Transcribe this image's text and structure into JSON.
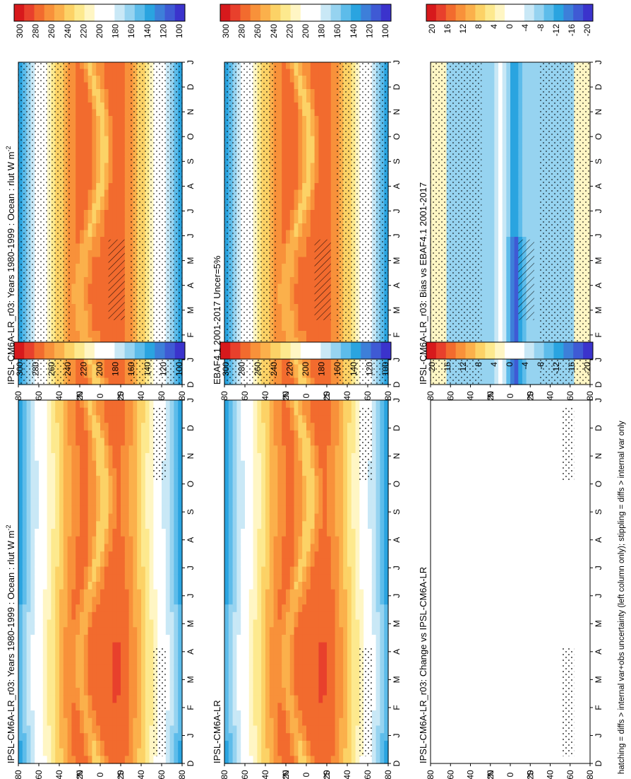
{
  "figure": {
    "footnote": "hatching = diffs > internal var+obs uncertainty (left column only); stippling = diffs > internal var only"
  },
  "scales": {
    "absolute": {
      "labels": [
        "300",
        "280",
        "260",
        "240",
        "220",
        "200",
        "180",
        "160",
        "140",
        "120",
        "100"
      ],
      "colors": [
        "#d7191c",
        "#e8402c",
        "#f26b2e",
        "#f8913a",
        "#fbb04b",
        "#fcd266",
        "#fde98e",
        "#fff6c4",
        "#ffffff",
        "#ffffff",
        "#c9e8f6",
        "#96d3f0",
        "#5dbcea",
        "#2aa4e0",
        "#3d7fd9",
        "#3f5ad4",
        "#3b33cc"
      ]
    },
    "difference": {
      "labels": [
        "20",
        "16",
        "12",
        "8",
        "4",
        "0",
        "-4",
        "-8",
        "-12",
        "-16",
        "-20"
      ],
      "colors": [
        "#d7191c",
        "#e8402c",
        "#f26b2e",
        "#f8913a",
        "#fbb04b",
        "#fcd266",
        "#fde98e",
        "#fff6c4",
        "#ffffff",
        "#ffffff",
        "#c9e8f6",
        "#96d3f0",
        "#5dbcea",
        "#2aa4e0",
        "#3d7fd9",
        "#3f5ad4",
        "#3b33cc"
      ]
    }
  },
  "chart_data": [
    {
      "type": "heatmap",
      "title": "IPSL-CM6A-LR_r03: Years 1980-1999 : Ocean : rlut W m",
      "title_superscript": "-2",
      "months": [
        "D",
        "J",
        "F",
        "M",
        "A",
        "M",
        "J",
        "J",
        "A",
        "S",
        "O",
        "N",
        "D",
        "J"
      ],
      "latitude_ticks": [
        "80",
        "60",
        "40",
        "20",
        "0",
        "20",
        "40",
        "60",
        "80"
      ],
      "lat_hemisphere_labels": [
        "°N",
        "°S"
      ],
      "scale": "absolute",
      "overlay": "stippling over extratropics, hatching in tropics",
      "value_range": [
        100,
        300
      ],
      "field": "outgoing longwave radiation, zonal mean climatology by month"
    },
    {
      "type": "heatmap",
      "title": "IPSL-CM6A-LR_r03: Years 1980-1999 : Ocean : rlut W m",
      "title_superscript": "-2",
      "months": [
        "D",
        "J",
        "F",
        "M",
        "A",
        "M",
        "J",
        "J",
        "A",
        "S",
        "O",
        "N",
        "D",
        "J"
      ],
      "latitude_ticks": [
        "80",
        "60",
        "40",
        "20",
        "0",
        "20",
        "40",
        "60",
        "80"
      ],
      "lat_hemisphere_labels": [
        "°N",
        "°S"
      ],
      "scale": "absolute",
      "overlay": "sparse stippling at southern high latitudes",
      "value_range": [
        100,
        300
      ]
    },
    {
      "type": "heatmap",
      "title": "EBAF4.1 2001-2017 Uncer=5%",
      "title_superscript": "",
      "months": [
        "D",
        "J",
        "F",
        "M",
        "A",
        "M",
        "J",
        "J",
        "A",
        "S",
        "O",
        "N",
        "D",
        "J"
      ],
      "latitude_ticks": [
        "80",
        "60",
        "40",
        "20",
        "0",
        "20",
        "40",
        "60",
        "80"
      ],
      "lat_hemisphere_labels": [
        "°N",
        "°S"
      ],
      "scale": "absolute",
      "overlay": "stippling, hatching in tropics",
      "value_range": [
        100,
        300
      ]
    },
    {
      "type": "heatmap",
      "title": "IPSL-CM6A-LR",
      "title_superscript": "",
      "months": [
        "D",
        "J",
        "F",
        "M",
        "A",
        "M",
        "J",
        "J",
        "A",
        "S",
        "O",
        "N",
        "D",
        "J"
      ],
      "latitude_ticks": [
        "80",
        "60",
        "40",
        "20",
        "0",
        "20",
        "40",
        "60",
        "80"
      ],
      "lat_hemisphere_labels": [
        "°N",
        "°S"
      ],
      "scale": "absolute",
      "overlay": "sparse stippling",
      "value_range": [
        100,
        300
      ]
    },
    {
      "type": "heatmap",
      "title": "IPSL-CM6A-LR_r03: Bias vs EBAF4.1 2001-2017",
      "title_superscript": "",
      "months": [
        "D",
        "J",
        "F",
        "M",
        "A",
        "M",
        "J",
        "J",
        "A",
        "S",
        "O",
        "N",
        "D",
        "J"
      ],
      "latitude_ticks": [
        "80",
        "60",
        "40",
        "20",
        "0",
        "20",
        "40",
        "60",
        "80"
      ],
      "lat_hemisphere_labels": [
        "°N",
        "°S"
      ],
      "scale": "difference",
      "overlay": "dense stippling, hatching near equator",
      "value_range": [
        -20,
        20
      ]
    },
    {
      "type": "heatmap",
      "title": "IPSL-CM6A-LR_r03: Change vs IPSL-CM6A-LR",
      "title_superscript": "",
      "months": [
        "D",
        "J",
        "F",
        "M",
        "A",
        "M",
        "J",
        "J",
        "A",
        "S",
        "O",
        "N",
        "D",
        "J"
      ],
      "latitude_ticks": [
        "80",
        "60",
        "40",
        "20",
        "0",
        "20",
        "40",
        "60",
        "80"
      ],
      "lat_hemisphere_labels": [
        "°N",
        "°S"
      ],
      "scale": "difference",
      "overlay": "stippling around 60°S",
      "value_range": [
        -20,
        20
      ]
    }
  ]
}
